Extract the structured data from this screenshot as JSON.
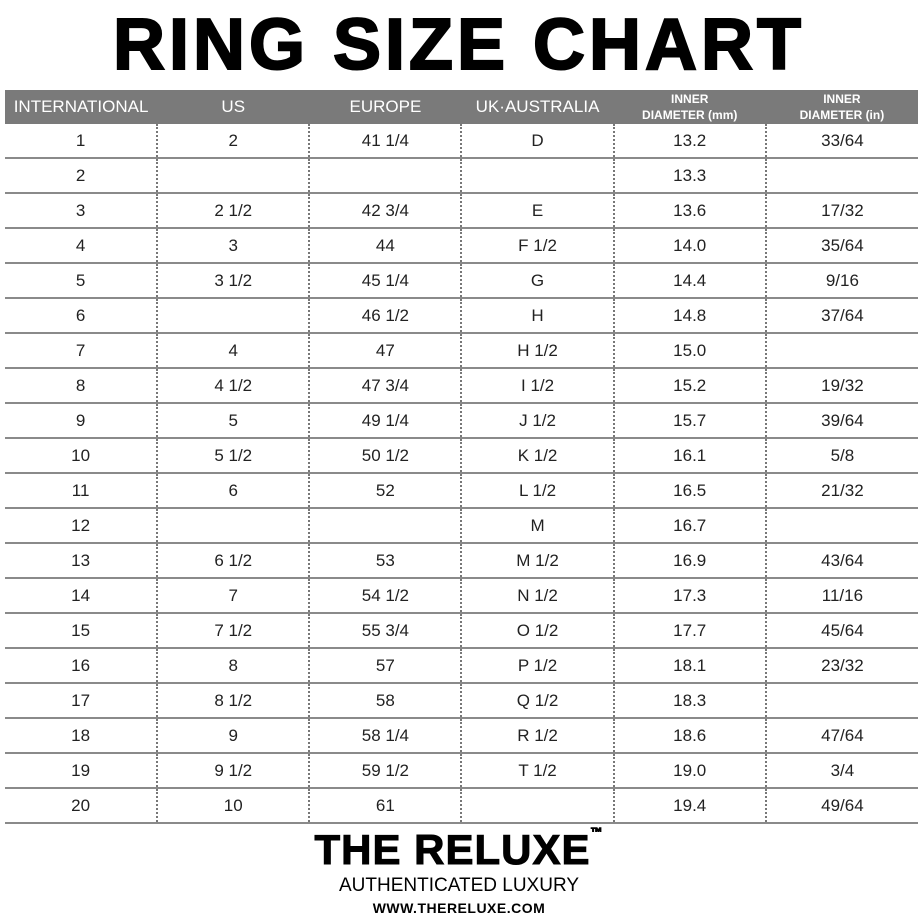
{
  "title": "RING SIZE CHART",
  "headers": [
    {
      "line1": "INTERNATIONAL",
      "line2": ""
    },
    {
      "line1": "US",
      "line2": ""
    },
    {
      "line1": "EUROPE",
      "line2": ""
    },
    {
      "line1": "UK·AUSTRALIA",
      "line2": ""
    },
    {
      "line1": "INNER",
      "line2": "DIAMETER (mm)"
    },
    {
      "line1": "INNER",
      "line2": "DIAMETER (in)"
    }
  ],
  "rows": [
    [
      "1",
      "2",
      "41 1/4",
      "D",
      "13.2",
      "33/64"
    ],
    [
      "2",
      "",
      "",
      "",
      "13.3",
      ""
    ],
    [
      "3",
      "2 1/2",
      "42 3/4",
      "E",
      "13.6",
      "17/32"
    ],
    [
      "4",
      "3",
      "44",
      "F 1/2",
      "14.0",
      "35/64"
    ],
    [
      "5",
      "3 1/2",
      "45 1/4",
      "G",
      "14.4",
      "9/16"
    ],
    [
      "6",
      "",
      "46 1/2",
      "H",
      "14.8",
      "37/64"
    ],
    [
      "7",
      "4",
      "47",
      "H 1/2",
      "15.0",
      ""
    ],
    [
      "8",
      "4 1/2",
      "47 3/4",
      "I 1/2",
      "15.2",
      "19/32"
    ],
    [
      "9",
      "5",
      "49 1/4",
      "J 1/2",
      "15.7",
      "39/64"
    ],
    [
      "10",
      "5 1/2",
      "50 1/2",
      "K 1/2",
      "16.1",
      "5/8"
    ],
    [
      "11",
      "6",
      "52",
      "L 1/2",
      "16.5",
      "21/32"
    ],
    [
      "12",
      "",
      "",
      "M",
      "16.7",
      ""
    ],
    [
      "13",
      "6 1/2",
      "53",
      "M 1/2",
      "16.9",
      "43/64"
    ],
    [
      "14",
      "7",
      "54 1/2",
      "N 1/2",
      "17.3",
      "11/16"
    ],
    [
      "15",
      "7 1/2",
      "55 3/4",
      "O 1/2",
      "17.7",
      "45/64"
    ],
    [
      "16",
      "8",
      "57",
      "P 1/2",
      "18.1",
      "23/32"
    ],
    [
      "17",
      "8 1/2",
      "58",
      "Q 1/2",
      "18.3",
      ""
    ],
    [
      "18",
      "9",
      "58 1/4",
      "R 1/2",
      "18.6",
      "47/64"
    ],
    [
      "19",
      "9 1/2",
      "59 1/2",
      "T 1/2",
      "19.0",
      "3/4"
    ],
    [
      "20",
      "10",
      "61",
      "",
      "19.4",
      "49/64"
    ]
  ],
  "brand": {
    "name": "THE RELUXE",
    "trademark": "™",
    "tagline": "AUTHENTICATED LUXURY",
    "url": "WWW.THERELUXE.COM"
  },
  "colors": {
    "header_bg": "#7a7a7a",
    "header_text": "#ffffff"
  }
}
